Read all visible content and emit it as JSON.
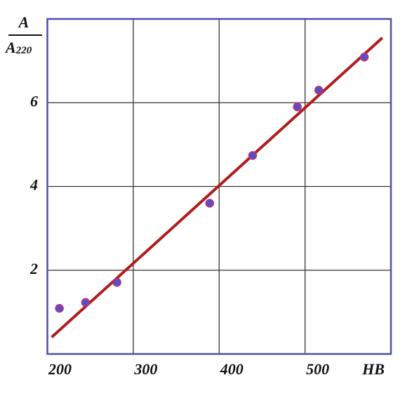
{
  "chart_data": {
    "type": "scatter",
    "ylabel_numerator": "A",
    "ylabel_denominator": "A",
    "ylabel_denominator_sub": "220",
    "xlabel": "HB",
    "x": [
      214,
      244.5,
      281,
      389,
      439,
      491,
      516,
      569
    ],
    "series": [
      {
        "color": "#5a4ec8",
        "values": [
          1.09,
          1.23,
          1.71,
          3.6,
          4.74,
          5.9,
          6.3,
          7.09
        ]
      }
    ],
    "fit_line": {
      "x": [
        205,
        590
      ],
      "y": [
        0.4,
        7.55
      ],
      "color": "#b01c1c"
    },
    "xlim": [
      200,
      600
    ],
    "xticks": [
      200,
      300,
      400,
      500
    ],
    "ylim": [
      0,
      8
    ],
    "yticks": [
      2,
      4,
      6
    ],
    "grid": true,
    "frame_color": "#4a4fb0"
  }
}
